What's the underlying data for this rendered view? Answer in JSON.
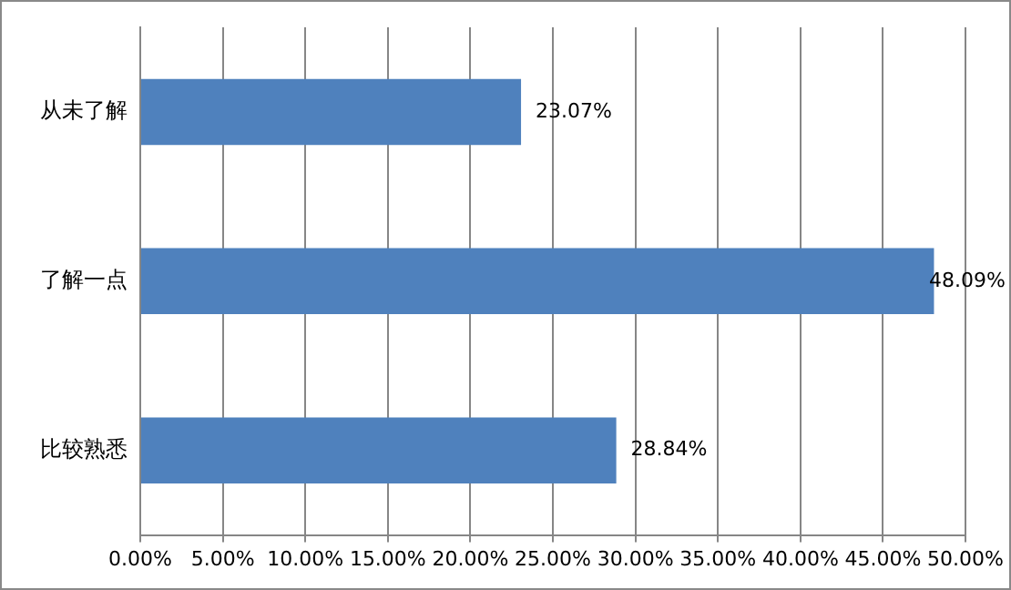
{
  "chart_data": {
    "type": "bar",
    "orientation": "horizontal",
    "categories": [
      "从未了解",
      "了解一点",
      "比较熟悉"
    ],
    "values": [
      23.07,
      48.09,
      28.84
    ],
    "color": "#4f81bd",
    "value_labels": [
      "23.07%",
      "48.09%",
      "28.84%"
    ],
    "xlim": [
      0,
      50
    ],
    "xticks": [
      {
        "value": 0,
        "label": "0.00%"
      },
      {
        "value": 5,
        "label": "5.00%"
      },
      {
        "value": 10,
        "label": "10.00%"
      },
      {
        "value": 15,
        "label": "15.00%"
      },
      {
        "value": 20,
        "label": "20.00%"
      },
      {
        "value": 25,
        "label": "25.00%"
      },
      {
        "value": 30,
        "label": "30.00%"
      },
      {
        "value": 35,
        "label": "35.00%"
      },
      {
        "value": 40,
        "label": "40.00%"
      },
      {
        "value": 45,
        "label": "45.00%"
      },
      {
        "value": 50,
        "label": "50.00%"
      }
    ],
    "grid": "x",
    "legend": false
  }
}
